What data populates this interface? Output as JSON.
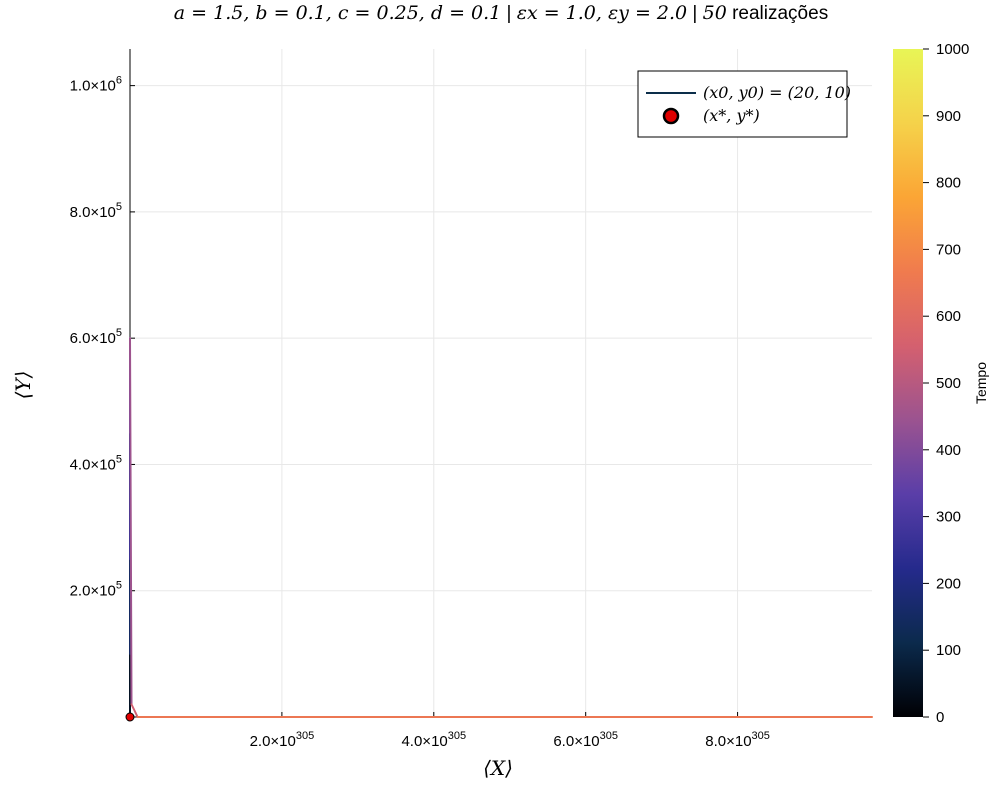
{
  "chart_data": {
    "type": "line",
    "title": "a = 1.5,  b = 0.1,  c = 0.25,  d = 0.1 | ε_x = 1.0,  ε_y = 2.0 | 50 realizações",
    "title_parts": {
      "params": "a = 1.5,  b = 0.1,  c = 0.25,  d = 0.1",
      "sep1": " | ",
      "eps": "εx = 1.0,  εy = 2.0",
      "sep2": " | ",
      "count": "50",
      "suffix": " realizações"
    },
    "xlabel": "⟨X⟩",
    "ylabel": "⟨Y⟩",
    "xlim_mantissa": [
      0,
      9.77
    ],
    "x_exponent": 305,
    "ylim": [
      0,
      1058000
    ],
    "x_ticks": [
      {
        "value": 2.0,
        "mantissa": "2.0×10",
        "exp": "305"
      },
      {
        "value": 4.0,
        "mantissa": "4.0×10",
        "exp": "305"
      },
      {
        "value": 6.0,
        "mantissa": "6.0×10",
        "exp": "305"
      },
      {
        "value": 8.0,
        "mantissa": "8.0×10",
        "exp": "305"
      }
    ],
    "y_ticks": [
      {
        "value": 200000,
        "mantissa": "2.0×10",
        "exp": "5"
      },
      {
        "value": 400000,
        "mantissa": "4.0×10",
        "exp": "5"
      },
      {
        "value": 600000,
        "mantissa": "6.0×10",
        "exp": "5"
      },
      {
        "value": 800000,
        "mantissa": "8.0×10",
        "exp": "5"
      },
      {
        "value": 1000000,
        "mantissa": "1.0×10",
        "exp": "6"
      }
    ],
    "grid": true,
    "legend_position": "top-right",
    "series": [
      {
        "name": "(x0, y0) = (20, 10)",
        "kind": "trajectory",
        "color_by": "time",
        "legend_color": "#0c2e4a",
        "points": [
          [
            0,
            0
          ],
          [
            0,
            100000
          ],
          [
            0,
            250000
          ],
          [
            0,
            450000
          ],
          [
            0,
            600000
          ],
          [
            0.02,
            20000
          ],
          [
            0.1,
            0
          ],
          [
            9.77,
            0
          ]
        ]
      },
      {
        "name": "(x*, y*)",
        "kind": "equilibrium",
        "color": "#e00000",
        "points": [
          [
            0,
            0
          ]
        ]
      }
    ],
    "colorbar": {
      "label": "Tempo",
      "min": 0,
      "max": 1000,
      "ticks": [
        0,
        100,
        200,
        300,
        400,
        500,
        600,
        700,
        800,
        900,
        1000
      ],
      "colormap": [
        "#000004",
        "#0b2a4c",
        "#252a8c",
        "#5a3ea8",
        "#9b5390",
        "#d4606f",
        "#f07b4e",
        "#fba535",
        "#f5d24a",
        "#e8f556"
      ]
    }
  }
}
